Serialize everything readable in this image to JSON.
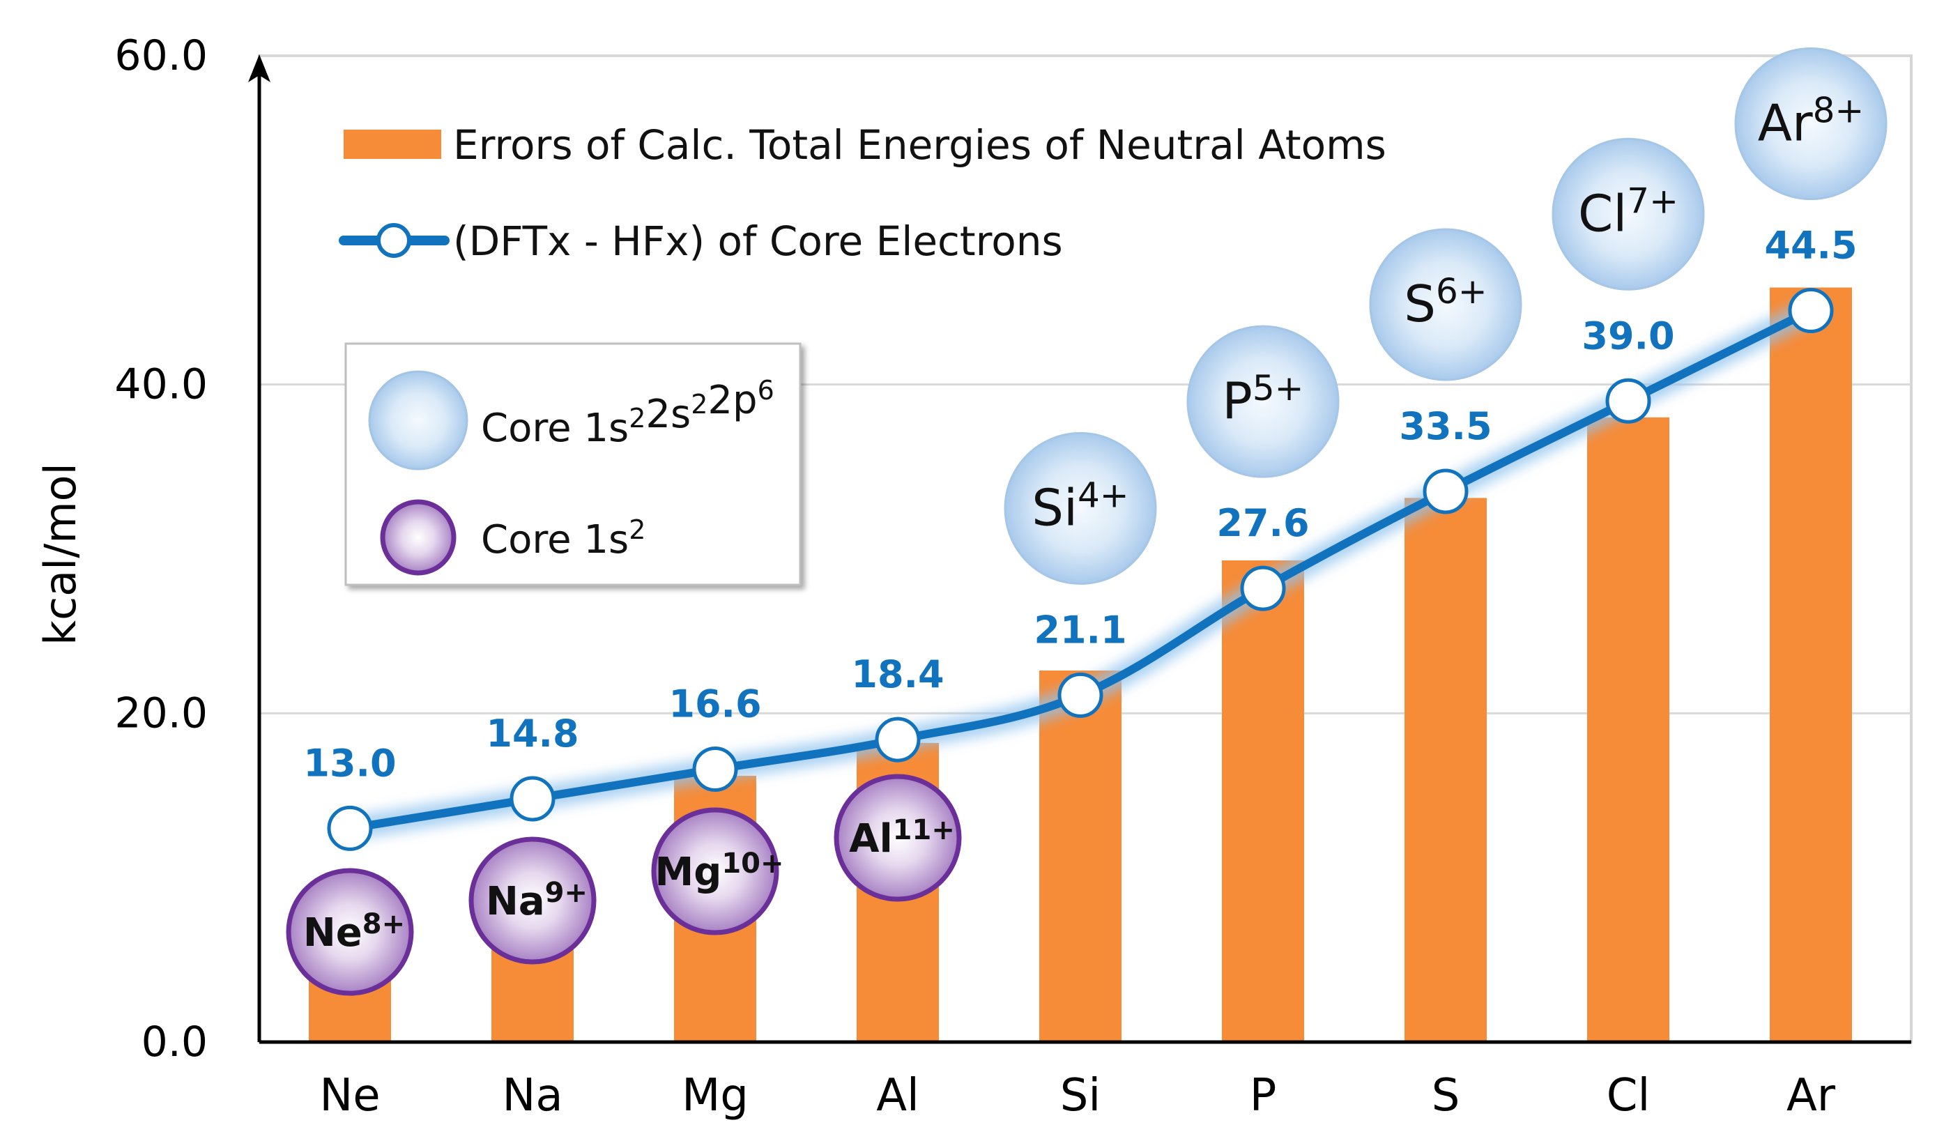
{
  "chart_data": {
    "type": "bar",
    "categories": [
      "Ne",
      "Na",
      "Mg",
      "Al",
      "Si",
      "P",
      "S",
      "Cl",
      "Ar"
    ],
    "series": [
      {
        "name": "Errors of Calc. Total Energies of Neutral Atoms",
        "kind": "bar",
        "color": "#F68B38",
        "values": [
          5.5,
          6.8,
          16.2,
          18.2,
          22.6,
          29.3,
          33.1,
          38.0,
          45.9
        ]
      },
      {
        "name": "(DFTx - HFx) of Core Electrons",
        "kind": "line",
        "color": "#1173BD",
        "values": [
          13.0,
          14.8,
          16.6,
          18.4,
          21.1,
          27.6,
          33.5,
          39.0,
          44.5
        ],
        "labels": [
          "13.0",
          "14.8",
          "16.6",
          "18.4",
          "21.1",
          "27.6",
          "33.5",
          "39.0",
          "44.5"
        ]
      }
    ],
    "ions": [
      {
        "symbol": "Ne",
        "charge": "8+",
        "core": "1s2"
      },
      {
        "symbol": "Na",
        "charge": "9+",
        "core": "1s2"
      },
      {
        "symbol": "Mg",
        "charge": "10+",
        "core": "1s2"
      },
      {
        "symbol": "Al",
        "charge": "11+",
        "core": "1s2"
      },
      {
        "symbol": "Si",
        "charge": "4+",
        "core": "1s22s22p6"
      },
      {
        "symbol": "P",
        "charge": "5+",
        "core": "1s22s22p6"
      },
      {
        "symbol": "S",
        "charge": "6+",
        "core": "1s22s22p6"
      },
      {
        "symbol": "Cl",
        "charge": "7+",
        "core": "1s22s22p6"
      },
      {
        "symbol": "Ar",
        "charge": "8+",
        "core": "1s22s22p6"
      }
    ],
    "title": "",
    "xlabel": "",
    "ylabel": "kcal/mol",
    "ylim": [
      0,
      60
    ],
    "yticks": [
      0,
      20,
      40,
      60
    ],
    "ytick_labels": [
      "0.0",
      "20.0",
      "40.0",
      "60.0"
    ],
    "grid": true,
    "legend_position": "top-left",
    "core_legend": [
      {
        "key": "1s22s22p6",
        "prefix": "Core ",
        "parts": [
          [
            "1s",
            "2"
          ],
          [
            "2s",
            "2"
          ],
          [
            "2p",
            "6"
          ]
        ]
      },
      {
        "key": "1s2",
        "prefix": "Core ",
        "parts": [
          [
            "1s",
            "2"
          ]
        ]
      }
    ]
  }
}
